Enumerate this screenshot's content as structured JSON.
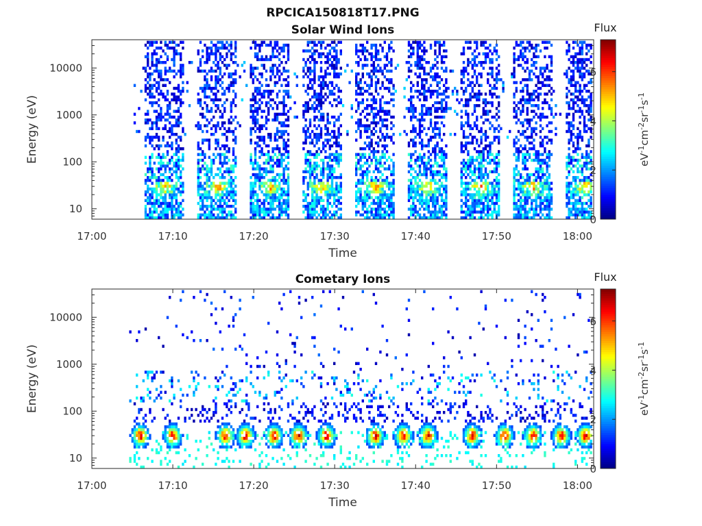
{
  "figure_title": "RPCICA150818T17.PNG",
  "colorbar": {
    "label": "Flux",
    "unit_base": "eV",
    "unit_sup1": "-1",
    "unit_mid1": "cm",
    "unit_sup2": "-2",
    "unit_mid2": "sr",
    "unit_sup3": "-1",
    "unit_mid3": "s",
    "unit_sup4": "-1",
    "ticks": [
      "0",
      "2",
      "4",
      "6"
    ],
    "range": [
      0,
      7.3
    ],
    "colormap": "jet"
  },
  "chart_data": [
    {
      "type": "heatmap",
      "title": "Solar Wind Ions",
      "xlabel": "Time",
      "ylabel": "Energy (eV)",
      "xticks": [
        "17:00",
        "17:10",
        "17:20",
        "17:30",
        "17:40",
        "17:50",
        "18:00"
      ],
      "xlim_minutes": [
        0,
        62
      ],
      "yticks": [
        "10",
        "100",
        "1000",
        "10000"
      ],
      "ylim": [
        6,
        40000
      ],
      "yscale": "log",
      "sweep_centers_min": [
        9,
        15.5,
        22,
        28.5,
        35,
        41.5,
        48,
        54.5,
        61
      ],
      "peak_energy_eV": 30,
      "peak_flux": 5.5
    },
    {
      "type": "heatmap",
      "title": "Cometary Ions",
      "xlabel": "Time",
      "ylabel": "Energy (eV)",
      "xticks": [
        "17:00",
        "17:10",
        "17:20",
        "17:30",
        "17:40",
        "17:50",
        "18:00"
      ],
      "xlim_minutes": [
        0,
        62
      ],
      "yticks": [
        "10",
        "100",
        "1000",
        "10000"
      ],
      "ylim": [
        6,
        40000
      ],
      "yscale": "log",
      "hot_blobs_min": [
        6,
        10,
        16.5,
        19,
        22.5,
        25.5,
        29,
        35,
        38.5,
        41.5,
        47,
        51,
        54.5,
        58,
        61
      ],
      "peak_energy_eV": 30,
      "peak_flux": 7
    }
  ]
}
